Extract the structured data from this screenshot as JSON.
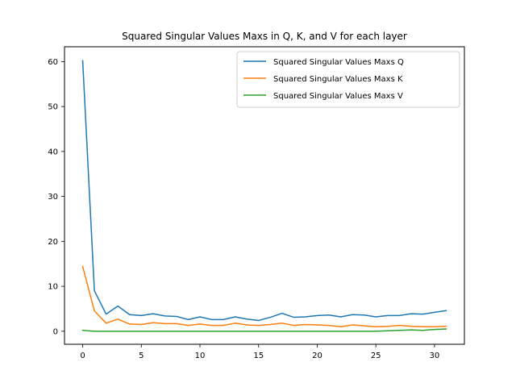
{
  "chart_data": {
    "type": "line",
    "title": "Squared Singular Values Maxs in Q, K, and V for each layer",
    "xlabel": "",
    "ylabel": "",
    "xlim": [
      -1.55,
      32.55
    ],
    "ylim": [
      -2.9,
      63.3
    ],
    "xticks": [
      0,
      5,
      10,
      15,
      20,
      25,
      30
    ],
    "yticks": [
      0,
      10,
      20,
      30,
      40,
      50,
      60
    ],
    "grid": false,
    "legend_position": "top-right",
    "x": [
      0,
      1,
      2,
      3,
      4,
      5,
      6,
      7,
      8,
      9,
      10,
      11,
      12,
      13,
      14,
      15,
      16,
      17,
      18,
      19,
      20,
      21,
      22,
      23,
      24,
      25,
      26,
      27,
      28,
      29,
      30,
      31
    ],
    "series": [
      {
        "name": "Squared Singular Values Maxs Q",
        "color": "#1f77b4",
        "values": [
          60.2,
          9.0,
          3.8,
          5.6,
          3.7,
          3.5,
          3.9,
          3.4,
          3.3,
          2.6,
          3.2,
          2.6,
          2.6,
          3.2,
          2.7,
          2.4,
          3.1,
          4.0,
          3.1,
          3.2,
          3.5,
          3.6,
          3.2,
          3.7,
          3.6,
          3.2,
          3.5,
          3.5,
          3.9,
          3.8,
          4.2,
          4.6
        ]
      },
      {
        "name": "Squared Singular Values Maxs K",
        "color": "#ff7f0e",
        "values": [
          14.4,
          4.5,
          1.8,
          2.7,
          1.6,
          1.5,
          1.9,
          1.7,
          1.7,
          1.3,
          1.6,
          1.3,
          1.3,
          1.8,
          1.4,
          1.3,
          1.5,
          1.8,
          1.3,
          1.5,
          1.4,
          1.3,
          1.0,
          1.4,
          1.2,
          1.0,
          1.1,
          1.3,
          1.1,
          1.0,
          1.0,
          1.1
        ]
      },
      {
        "name": "Squared Singular Values Maxs V",
        "color": "#2ca02c",
        "values": [
          0.2,
          0.0,
          0.0,
          0.0,
          0.0,
          0.0,
          0.0,
          0.0,
          0.0,
          0.0,
          0.0,
          0.0,
          0.0,
          0.0,
          0.0,
          0.0,
          0.0,
          0.0,
          0.0,
          0.0,
          0.0,
          0.0,
          0.0,
          0.0,
          0.0,
          0.0,
          0.1,
          0.2,
          0.3,
          0.2,
          0.4,
          0.5
        ]
      }
    ]
  }
}
